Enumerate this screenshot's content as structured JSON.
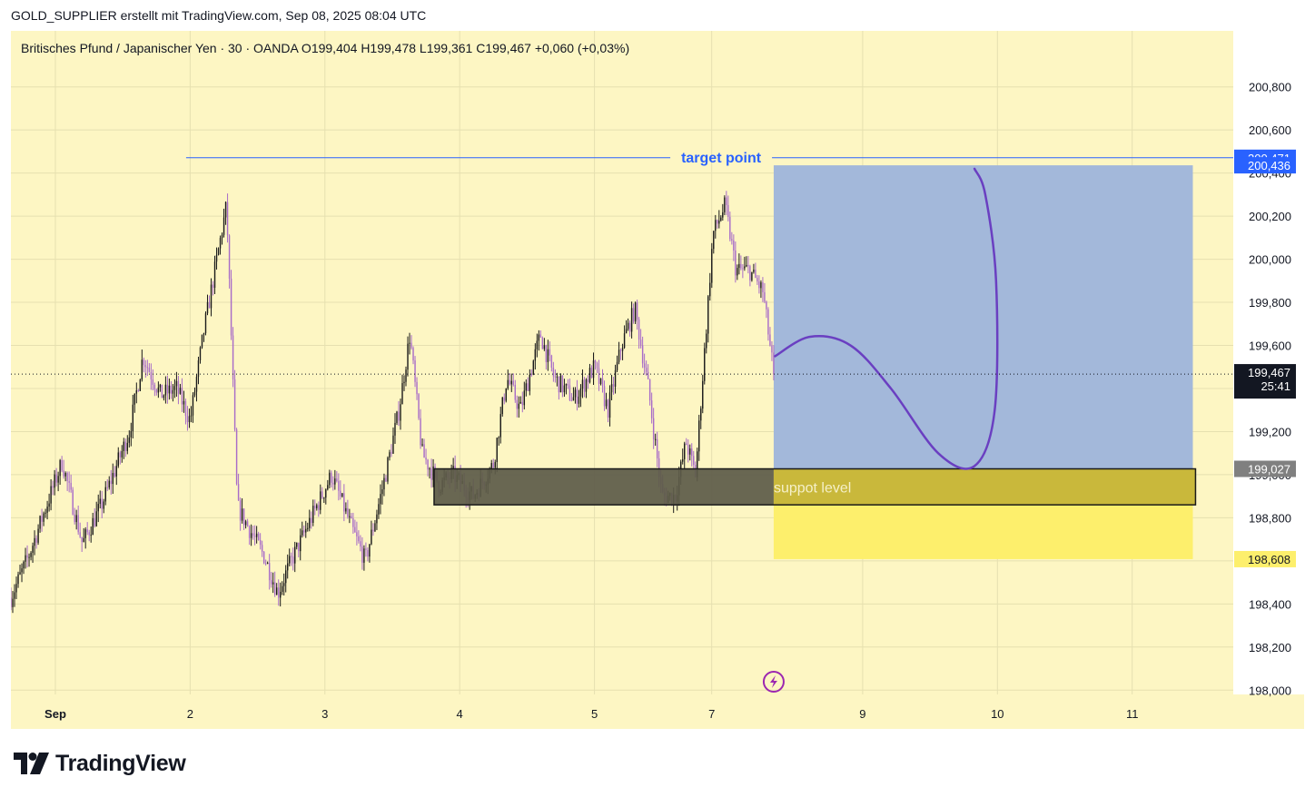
{
  "header": {
    "attribution": "GOLD_SUPPLIER erstellt mit TradingView.com, Sep 08, 2025 08:04 UTC"
  },
  "colors": {
    "background": "#fdf6c3",
    "grid": "#e6e0b0",
    "candle_bull": "#1a1a1a",
    "candle_bear": "#a86cc8",
    "target_line": "#2962ff",
    "projection_box": "#a3b8da",
    "support_zone": "#5e5b49",
    "stop_zone": "#fdef6c",
    "projection_curve": "#6a3fc1",
    "price_label_dark": "#131722",
    "price_label_blue": "#2962ff",
    "price_label_grey": "#808080",
    "price_label_yellow": "#fdef6c"
  },
  "chart_data": {
    "type": "candlestick",
    "symbol_line": "Britisches Pfund / Japanischer Yen · 30 · OANDA  O199,404  H199,478  L199,361  C199,467  +0,060 (+0,03%)",
    "y_axis_ticks": [
      "200,800",
      "200,600",
      "200,400",
      "200,200",
      "200,000",
      "199,800",
      "199,600",
      "199,400",
      "199,200",
      "199,000",
      "198,800",
      "198,600",
      "198,400",
      "198,200",
      "198,000"
    ],
    "y_range": [
      197.98,
      201.06
    ],
    "x_axis_labels": [
      {
        "label": "Sep",
        "t": 0
      },
      {
        "label": "2",
        "t": 1
      },
      {
        "label": "3",
        "t": 2
      },
      {
        "label": "4",
        "t": 3
      },
      {
        "label": "5",
        "t": 4
      },
      {
        "label": "7",
        "t": 4.87
      },
      {
        "label": "9",
        "t": 5.99
      },
      {
        "label": "10",
        "t": 6.99
      },
      {
        "label": "11",
        "t": 7.99
      }
    ],
    "x_range": [
      -0.33,
      8.74
    ],
    "last_candle_t": 5.33,
    "key_points": [
      {
        "t": -0.33,
        "price": 198.43
      },
      {
        "t": -0.2,
        "price": 198.62
      },
      {
        "t": 0.05,
        "price": 199.06
      },
      {
        "t": 0.2,
        "price": 198.68
      },
      {
        "t": 0.35,
        "price": 198.87
      },
      {
        "t": 0.55,
        "price": 199.2
      },
      {
        "t": 0.65,
        "price": 199.55
      },
      {
        "t": 0.78,
        "price": 199.37
      },
      {
        "t": 0.9,
        "price": 199.4
      },
      {
        "t": 1.0,
        "price": 199.25
      },
      {
        "t": 1.1,
        "price": 199.66
      },
      {
        "t": 1.27,
        "price": 200.25
      },
      {
        "t": 1.35,
        "price": 198.85
      },
      {
        "t": 1.55,
        "price": 198.62
      },
      {
        "t": 1.65,
        "price": 198.45
      },
      {
        "t": 1.75,
        "price": 198.6
      },
      {
        "t": 1.9,
        "price": 198.8
      },
      {
        "t": 2.05,
        "price": 199.0
      },
      {
        "t": 2.2,
        "price": 198.75
      },
      {
        "t": 2.3,
        "price": 198.6
      },
      {
        "t": 2.45,
        "price": 199.0
      },
      {
        "t": 2.55,
        "price": 199.3
      },
      {
        "t": 2.63,
        "price": 199.65
      },
      {
        "t": 2.72,
        "price": 199.1
      },
      {
        "t": 2.85,
        "price": 198.95
      },
      {
        "t": 2.95,
        "price": 199.0
      },
      {
        "t": 3.1,
        "price": 198.9
      },
      {
        "t": 3.25,
        "price": 199.05
      },
      {
        "t": 3.35,
        "price": 199.45
      },
      {
        "t": 3.45,
        "price": 199.3
      },
      {
        "t": 3.6,
        "price": 199.65
      },
      {
        "t": 3.7,
        "price": 199.45
      },
      {
        "t": 3.85,
        "price": 199.35
      },
      {
        "t": 4.0,
        "price": 199.5
      },
      {
        "t": 4.1,
        "price": 199.3
      },
      {
        "t": 4.2,
        "price": 199.6
      },
      {
        "t": 4.3,
        "price": 199.77
      },
      {
        "t": 4.4,
        "price": 199.4
      },
      {
        "t": 4.5,
        "price": 198.9
      },
      {
        "t": 4.6,
        "price": 198.9
      },
      {
        "t": 4.68,
        "price": 199.15
      },
      {
        "t": 4.75,
        "price": 199.0
      },
      {
        "t": 4.82,
        "price": 199.6
      },
      {
        "t": 4.88,
        "price": 200.12
      },
      {
        "t": 4.97,
        "price": 200.25
      },
      {
        "t": 5.05,
        "price": 199.95
      },
      {
        "t": 5.15,
        "price": 199.95
      },
      {
        "t": 5.25,
        "price": 199.85
      },
      {
        "t": 5.33,
        "price": 199.467
      }
    ],
    "last_price": {
      "price_label": "199,467",
      "countdown": "25:41",
      "price": 199.467
    },
    "annotations": {
      "target": {
        "label": "target point",
        "price": 200.471,
        "price_label": "200,471",
        "t_start": 0.97,
        "t_end": 8.74
      },
      "projection_box": {
        "top_price": 200.436,
        "top_label": "200,436",
        "bottom_price": 199.027,
        "bottom_label": "199,027",
        "t_start": 5.33,
        "t_end": 8.44
      },
      "support_zone": {
        "label": "suppot level",
        "top_price": 199.027,
        "bottom_price": 198.86,
        "t_start": 2.81,
        "t_end": 8.46
      },
      "stop_zone": {
        "bottom_price": 198.608,
        "bottom_label": "198,608",
        "t_start": 5.33,
        "t_end": 8.44
      },
      "projection_curve": [
        {
          "t": 5.34,
          "price": 199.55
        },
        {
          "t": 5.6,
          "price": 199.64
        },
        {
          "t": 5.9,
          "price": 199.6
        },
        {
          "t": 6.2,
          "price": 199.4
        },
        {
          "t": 6.55,
          "price": 199.1
        },
        {
          "t": 6.82,
          "price": 199.04
        },
        {
          "t": 6.97,
          "price": 199.3
        },
        {
          "t": 6.98,
          "price": 199.9
        },
        {
          "t": 6.9,
          "price": 200.3
        },
        {
          "t": 6.82,
          "price": 200.42
        }
      ]
    }
  },
  "brand": {
    "name": "TradingView"
  }
}
